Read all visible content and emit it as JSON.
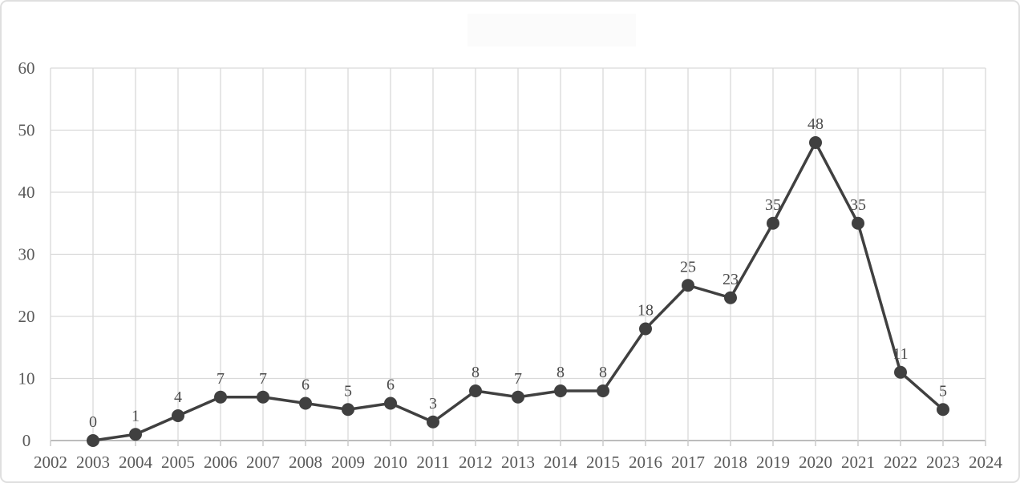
{
  "page": {
    "background": "#ffffff",
    "frame_border": "#dfdfdf",
    "title_placeholder_bg": "#fbfbfb"
  },
  "chart_data": {
    "type": "line",
    "title": "",
    "xlabel": "",
    "ylabel": "",
    "x": [
      2003,
      2004,
      2005,
      2006,
      2007,
      2008,
      2009,
      2010,
      2011,
      2012,
      2013,
      2014,
      2015,
      2016,
      2017,
      2018,
      2019,
      2020,
      2021,
      2022,
      2023
    ],
    "values": [
      0,
      1,
      4,
      7,
      7,
      6,
      5,
      6,
      3,
      8,
      7,
      8,
      8,
      18,
      25,
      23,
      35,
      48,
      35,
      11,
      5
    ],
    "xlim": [
      2002,
      2024
    ],
    "ylim": [
      0,
      60
    ],
    "x_ticks": [
      2002,
      2003,
      2004,
      2005,
      2006,
      2007,
      2008,
      2009,
      2010,
      2011,
      2012,
      2013,
      2014,
      2015,
      2016,
      2017,
      2018,
      2019,
      2020,
      2021,
      2022,
      2023,
      2024
    ],
    "y_ticks": [
      0,
      10,
      20,
      30,
      40,
      50,
      60
    ],
    "grid": true,
    "legend": "none",
    "data_labels": true,
    "colors": {
      "line": "#404040",
      "marker": "#404040",
      "gridline": "#d9d9d9",
      "axis_line": "#a6a6a6",
      "tick": "#c4c4c4",
      "tick_label": "#595959",
      "data_label": "#4a4a4a"
    }
  }
}
